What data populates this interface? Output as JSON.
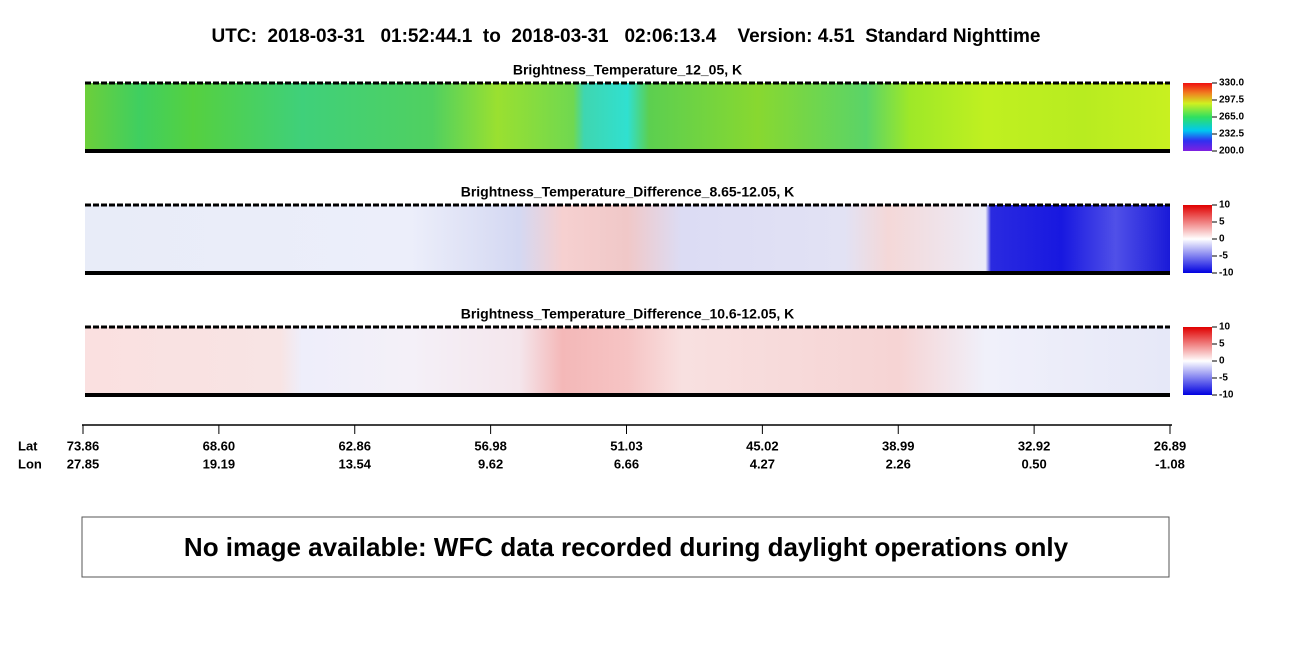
{
  "header": {
    "title": "UTC:  2018-03-31   01:52:44.1  to  2018-03-31   02:06:13.4    Version: 4.51  Standard Nighttime"
  },
  "panels": [
    {
      "title": "Brightness_Temperature_12_05, K",
      "colorbar": {
        "range": [
          200,
          330
        ],
        "ticks": [
          {
            "value": 330,
            "label": "330.0"
          },
          {
            "value": 297.5,
            "label": "297.5"
          },
          {
            "value": 265,
            "label": "265.0"
          },
          {
            "value": 232.5,
            "label": "232.5"
          },
          {
            "value": 200,
            "label": "200.0"
          }
        ]
      }
    },
    {
      "title": "Brightness_Temperature_Difference_8.65-12.05, K",
      "colorbar": {
        "range": [
          -10,
          10
        ],
        "ticks": [
          10,
          5,
          0,
          -5,
          -10
        ]
      }
    },
    {
      "title": "Brightness_Temperature_Difference_10.6-12.05, K",
      "colorbar": {
        "range": [
          -10,
          10
        ],
        "ticks": [
          10,
          5,
          0,
          -5,
          -10
        ]
      }
    }
  ],
  "axis": {
    "lat_label": "Lat",
    "lon_label": "Lon",
    "lat": [
      "73.86",
      "68.60",
      "62.86",
      "56.98",
      "51.03",
      "45.02",
      "38.99",
      "32.92",
      "26.89"
    ],
    "lon": [
      "27.85",
      "19.19",
      "13.54",
      "9.62",
      "6.66",
      "4.27",
      "2.26",
      "0.50",
      "-1.08"
    ]
  },
  "message": "No image available: WFC data recorded during daylight operations only"
}
